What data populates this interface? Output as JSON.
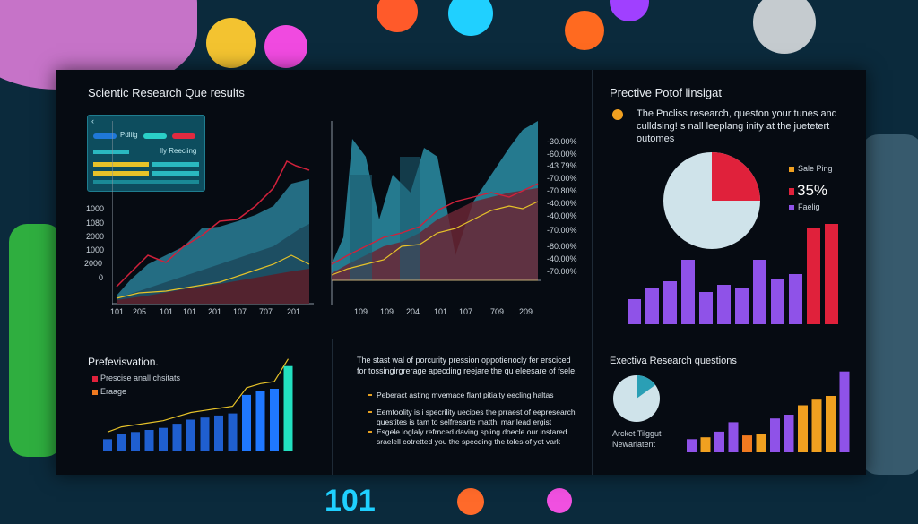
{
  "top_left": {
    "title": "Scientic Research Que results",
    "mini_panel": {
      "row1_label": "Pdliig",
      "row2_label": "Ily Reeciing"
    },
    "left_axis_ticks": [
      "1000",
      "1080",
      "2000",
      "1000",
      "2000",
      "0"
    ],
    "left_x_ticks": [
      "101",
      "205",
      "101",
      "101",
      "201",
      "107",
      "707",
      "201"
    ],
    "right_x_ticks": [
      "109",
      "109",
      "204",
      "101",
      "107",
      "709",
      "209"
    ],
    "right_axis_ticks": [
      "-30.00%",
      "-60.00%",
      "-43.79%",
      "-70.00%",
      "-70.80%",
      "-40.00%",
      "-40.00%",
      "-80.00%",
      "-40.00%",
      "-70.00%",
      "-70.00%"
    ]
  },
  "top_right": {
    "title": "Prective Potof linsigat",
    "desc_line1": "The Pncliss research, queston your tunes and",
    "desc_line2": "culldsing! s nall leeplang inity at the juetetert",
    "desc_line3": "outomes",
    "legend1": "Sale Ping",
    "legend2": "35%",
    "legend3": "Faelig",
    "pie_slice_percent": 25,
    "bar_values": [
      28,
      40,
      48,
      72,
      36,
      44,
      40,
      72,
      50,
      56,
      108,
      112
    ]
  },
  "bottom_left": {
    "title": "Prefevisvation.",
    "legend1": "Prescise anall chsitats",
    "legend2": "Eraage",
    "bar_values": [
      11,
      16,
      18,
      20,
      22,
      26,
      30,
      32,
      34,
      36,
      54,
      58,
      60,
      82
    ]
  },
  "bottom_middle": {
    "para_line1": "The stast wal of porcurity pression oppotienocly fer ersciced",
    "para_line2": "for tossingirgrerage apecding reejare the qu eleesare of fsele.",
    "bullet1": "Peberact asting mvemace flant pitialty eecling haltas",
    "bullet2_line1": "Eemtoolity is i specrility uecipes the prraest of eepresearch",
    "bullet2_line2": "questites is tam to selfresarte matth, mar lead ergist",
    "bullet3_line1": "Esgele loglaly refrnced daving spling doecle our instared",
    "bullet3_line2": "sraelell cotretted you the specding the toles of yot vark"
  },
  "bottom_right": {
    "title": "Exectiva Research questions",
    "label_line1": "Arcket Tilggut",
    "label_line2": "Newariatent",
    "pie_slice_percent": 15,
    "bar_values": [
      14,
      16,
      22,
      32,
      18,
      20,
      36,
      40,
      50,
      56,
      60,
      86
    ]
  },
  "footer_number": "101",
  "colors": {
    "panel_bg": "#060b12",
    "teal": "#2a9fb5",
    "red": "#d0213b",
    "yellow": "#e6c229",
    "purple": "#8f52e8",
    "blue": "#1f5fd0",
    "orange": "#f0a020"
  }
}
